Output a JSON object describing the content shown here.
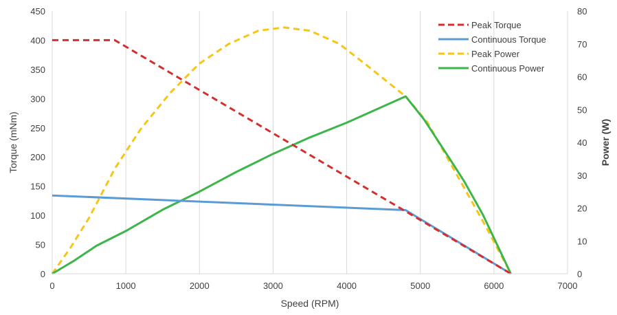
{
  "chart_data": {
    "type": "line",
    "xlabel": "Speed (RPM)",
    "ylabel": "Torque (mNm)",
    "y2label": "Power (W)",
    "xlim": [
      0,
      7000
    ],
    "ylim": [
      0,
      450
    ],
    "y2lim": [
      0,
      80
    ],
    "x_ticks": [
      0,
      1000,
      2000,
      3000,
      4000,
      5000,
      6000,
      7000
    ],
    "y_ticks": [
      0,
      50,
      100,
      150,
      200,
      250,
      300,
      350,
      400,
      450
    ],
    "y2_ticks": [
      0,
      10,
      20,
      30,
      40,
      50,
      60,
      70,
      80
    ],
    "grid": "vertical",
    "legend": "top-right",
    "series": [
      {
        "name": "Peak Torque",
        "axis": "left",
        "color": "#d32f2f",
        "dash": "dashed",
        "x": [
          0,
          850,
          4800,
          6230
        ],
        "y": [
          400,
          400,
          107,
          0
        ]
      },
      {
        "name": "Continuous Torque",
        "axis": "left",
        "color": "#5b9bd5",
        "dash": "solid",
        "x": [
          0,
          4800,
          6230
        ],
        "y": [
          134,
          109,
          0
        ]
      },
      {
        "name": "Peak Power",
        "axis": "right",
        "color": "#f5c518",
        "dash": "dashed",
        "x": [
          0,
          250,
          500,
          850,
          1200,
          1600,
          2000,
          2400,
          2800,
          3150,
          3500,
          3900,
          4300,
          4800,
          5100,
          5500,
          5900,
          6230
        ],
        "y": [
          0,
          8,
          17,
          32,
          44,
          55,
          64,
          70,
          74,
          75,
          74,
          70,
          63,
          54,
          46,
          30,
          14,
          0
        ]
      },
      {
        "name": "Continuous Power",
        "axis": "right",
        "color": "#3cb54a",
        "dash": "solid",
        "x": [
          0,
          300,
          600,
          1000,
          1500,
          2000,
          2500,
          3000,
          3500,
          4000,
          4500,
          4800,
          5050,
          5400,
          5600,
          5850,
          6230
        ],
        "y": [
          0,
          4,
          8.5,
          13,
          19.5,
          25,
          31,
          36.5,
          41.5,
          46,
          51,
          54,
          47,
          35,
          28,
          18,
          0
        ]
      }
    ]
  }
}
